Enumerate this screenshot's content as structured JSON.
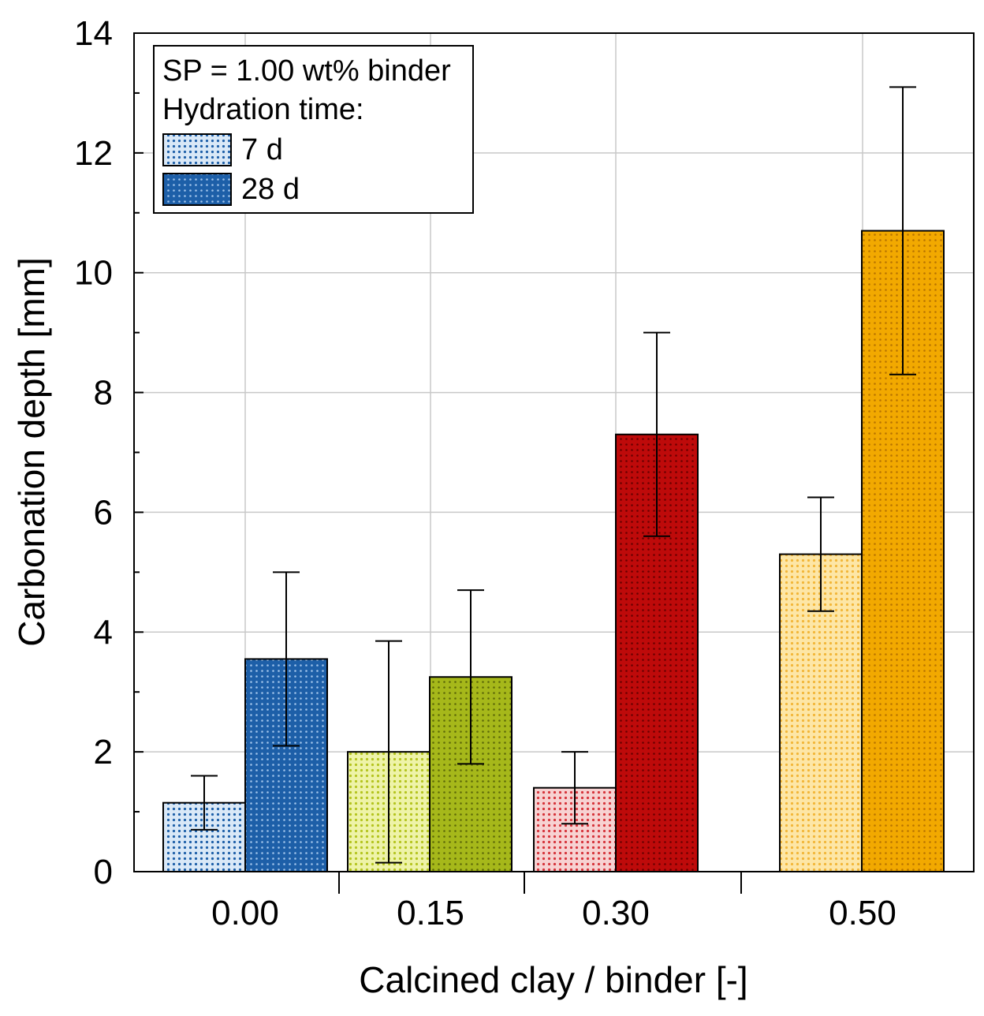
{
  "chart_data": {
    "type": "bar",
    "title": "",
    "xlabel": "Calcined clay / binder [-]",
    "ylabel": "Carbonation depth [mm]",
    "ylim": [
      0,
      14
    ],
    "yticks": [
      "0",
      "2",
      "4",
      "6",
      "8",
      "10",
      "12",
      "14"
    ],
    "grid": true,
    "categories": [
      "0.00",
      "0.15",
      "0.30",
      "0.50"
    ],
    "category_colors": [
      "#1d5fa8",
      "#b4c41e",
      "#be0a0a",
      "#f2a900"
    ],
    "series": [
      {
        "name": "7 d",
        "pattern": "light",
        "values": [
          1.15,
          2.0,
          1.4,
          5.3
        ],
        "errors": [
          0.45,
          1.85,
          0.6,
          0.95
        ]
      },
      {
        "name": "28 d",
        "pattern": "dark",
        "values": [
          3.55,
          3.25,
          7.3,
          10.7
        ],
        "errors": [
          1.45,
          1.45,
          1.7,
          2.4
        ]
      }
    ],
    "legend": {
      "placement": "top-left",
      "line1": "SP = 1.00 wt% binder",
      "line2": "Hydration time:",
      "entries": [
        "7 d",
        "28 d"
      ]
    }
  }
}
